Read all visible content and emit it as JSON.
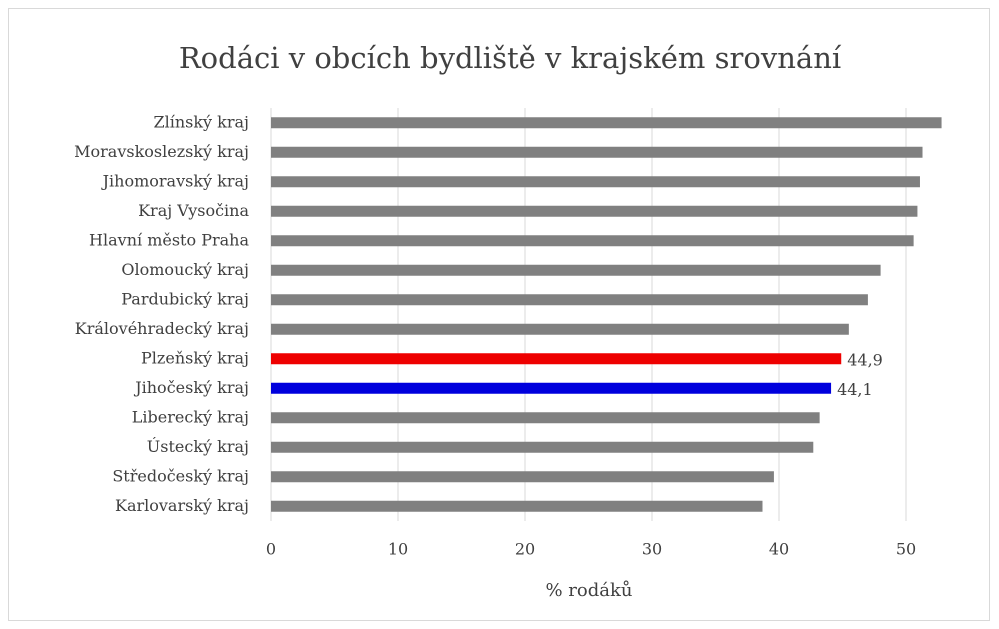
{
  "chart_data": {
    "type": "barh",
    "title": "Rodáci v obcích bydliště v krajském srovnání",
    "xlabel": "% rodáků",
    "categories": [
      "Zlínský kraj",
      "Moravskoslezský kraj",
      "Jihomoravský kraj",
      "Kraj Vysočina",
      "Hlavní město Praha",
      "Olomoucký kraj",
      "Pardubický kraj",
      "Královéhradecký kraj",
      "Plzeňský kraj",
      "Jihočeský kraj",
      "Liberecký kraj",
      "Ústecký kraj",
      "Středočeský kraj",
      "Karlovarský kraj"
    ],
    "values": [
      52.8,
      51.3,
      51.1,
      50.9,
      50.6,
      48.0,
      47.0,
      45.5,
      44.9,
      44.1,
      43.2,
      42.7,
      39.6,
      38.7
    ],
    "value_labels": [
      null,
      null,
      null,
      null,
      null,
      null,
      null,
      null,
      "44,9",
      "44,1",
      null,
      null,
      null,
      null
    ],
    "colors": [
      "#808080",
      "#808080",
      "#808080",
      "#808080",
      "#808080",
      "#808080",
      "#808080",
      "#808080",
      "#ee0000",
      "#0000dd",
      "#808080",
      "#808080",
      "#808080",
      "#808080"
    ],
    "xlim": [
      0,
      54
    ],
    "xticks": [
      0,
      10,
      20,
      30,
      40,
      50
    ],
    "grid": true
  }
}
